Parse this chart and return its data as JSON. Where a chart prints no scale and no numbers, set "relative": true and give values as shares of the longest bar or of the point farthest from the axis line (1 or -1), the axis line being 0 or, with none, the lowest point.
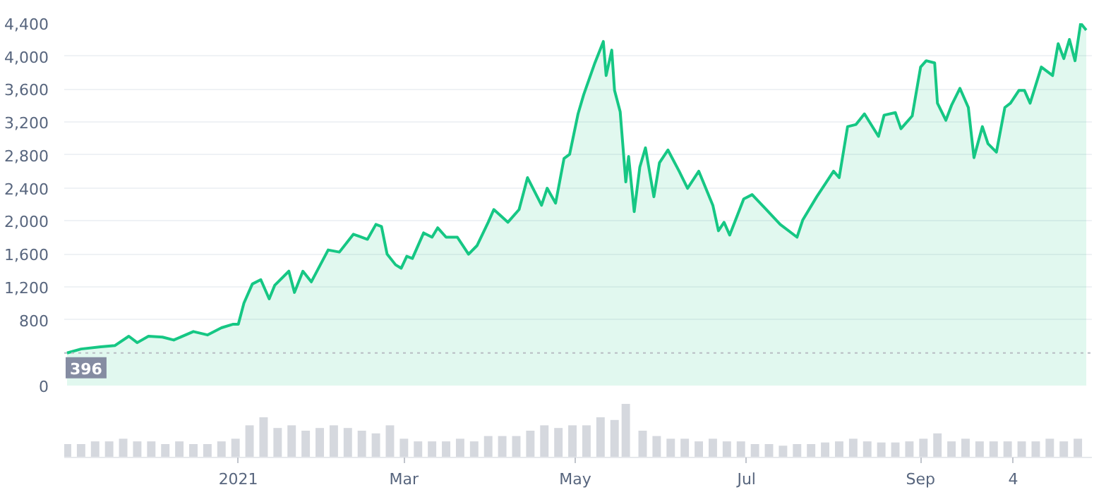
{
  "chart_data": [
    {
      "type": "area",
      "tick_labels": "y",
      "xlim": [
        "2020-10-31",
        "2021-11-01"
      ],
      "ylim": [
        0,
        4400
      ],
      "yticks": [
        0,
        800,
        {
          "value": 1200,
          "label": "1,200"
        },
        {
          "value": 1600,
          "label": "1,600"
        },
        {
          "value": 2000,
          "label": "2,000"
        },
        {
          "value": 2400,
          "label": "2,400"
        },
        {
          "value": 2800,
          "label": "2,800"
        },
        {
          "value": 3200,
          "label": "3,200"
        },
        {
          "value": 3600,
          "label": "3,600"
        },
        {
          "value": 4000,
          "label": "4,000"
        },
        {
          "value": 4400,
          "label": "4,400"
        }
      ],
      "grid": "y",
      "ref_lines": [
        {
          "axis": "y",
          "value": 396,
          "label": "396",
          "color": "#b8bcc4",
          "line_style": "dotted"
        }
      ],
      "series": [
        {
          "color": "#16c784",
          "x": [
            "2020-11-01",
            "2020-11-06",
            "2020-11-13",
            "2020-11-18",
            "2020-11-23",
            "2020-11-26",
            "2020-11-30",
            "2020-12-05",
            "2020-12-09",
            "2020-12-16",
            "2020-12-21",
            "2020-12-26",
            "2020-12-30",
            "2021-01-01",
            "2021-01-03",
            "2021-01-06",
            "2021-01-09",
            "2021-01-12",
            "2021-01-14",
            "2021-01-19",
            "2021-01-21",
            "2021-01-24",
            "2021-01-27",
            "2021-02-02",
            "2021-02-06",
            "2021-02-11",
            "2021-02-16",
            "2021-02-19",
            "2021-02-21",
            "2021-02-23",
            "2021-02-26",
            "2021-02-28",
            "2021-03-02",
            "2021-03-04",
            "2021-03-08",
            "2021-03-11",
            "2021-03-13",
            "2021-03-16",
            "2021-03-20",
            "2021-03-24",
            "2021-03-27",
            "2021-03-31",
            "2021-04-02",
            "2021-04-07",
            "2021-04-11",
            "2021-04-14",
            "2021-04-19",
            "2021-04-21",
            "2021-04-24",
            "2021-04-27",
            "2021-04-29",
            "2021-05-02",
            "2021-05-04",
            "2021-05-08",
            "2021-05-11",
            "2021-05-12",
            "2021-05-14",
            "2021-05-15",
            "2021-05-17",
            "2021-05-19",
            "2021-05-20",
            "2021-05-22",
            "2021-05-24",
            "2021-05-26",
            "2021-05-29",
            "2021-05-31",
            "2021-06-03",
            "2021-06-07",
            "2021-06-10",
            "2021-06-14",
            "2021-06-19",
            "2021-06-21",
            "2021-06-23",
            "2021-06-25",
            "2021-06-30",
            "2021-07-03",
            "2021-07-08",
            "2021-07-13",
            "2021-07-19",
            "2021-07-21",
            "2021-07-26",
            "2021-08-01",
            "2021-08-03",
            "2021-08-06",
            "2021-08-09",
            "2021-08-12",
            "2021-08-17",
            "2021-08-19",
            "2021-08-23",
            "2021-08-25",
            "2021-08-29",
            "2021-09-01",
            "2021-09-03",
            "2021-09-06",
            "2021-09-07",
            "2021-09-10",
            "2021-09-12",
            "2021-09-15",
            "2021-09-18",
            "2021-09-20",
            "2021-09-23",
            "2021-09-25",
            "2021-09-28",
            "2021-10-01",
            "2021-10-03",
            "2021-10-06",
            "2021-10-08",
            "2021-10-10",
            "2021-10-14",
            "2021-10-18",
            "2021-10-20",
            "2021-10-22",
            "2021-10-24",
            "2021-10-26",
            "2021-10-28",
            "2021-10-30"
          ],
          "values": [
            396,
            444,
            470,
            485,
            599,
            521,
            599,
            589,
            553,
            656,
            615,
            702,
            744,
            744,
            1002,
            1234,
            1286,
            1053,
            1219,
            1389,
            1131,
            1389,
            1260,
            1647,
            1621,
            1838,
            1776,
            1957,
            1931,
            1596,
            1467,
            1425,
            1570,
            1544,
            1854,
            1802,
            1916,
            1802,
            1802,
            1596,
            1699,
            1983,
            2138,
            1983,
            2138,
            2525,
            2190,
            2396,
            2215,
            2757,
            2809,
            3300,
            3532,
            3919,
            4178,
            3765,
            4074,
            3584,
            3326,
            2474,
            2783,
            2112,
            2654,
            2887,
            2293,
            2706,
            2861,
            2603,
            2396,
            2603,
            2190,
            1880,
            1983,
            1828,
            2267,
            2319,
            2138,
            1957,
            1802,
            2009,
            2293,
            2603,
            2525,
            3145,
            3171,
            3300,
            3026,
            3284,
            3315,
            3119,
            3274,
            3868,
            3945,
            3919,
            3429,
            3222,
            3403,
            3610,
            3377,
            2768,
            3145,
            2938,
            2835,
            3377,
            3429,
            3584,
            3584,
            3429,
            3868,
            3765,
            4152,
            3971,
            4203,
            3945,
            4400,
            4317
          ]
        }
      ]
    },
    {
      "type": "bar",
      "relative": true,
      "xlim": [
        "2020-10-31",
        "2021-11-01"
      ],
      "xticks": [
        {
          "value": "2021-01-01",
          "label": "2021"
        },
        {
          "value": "2021-03-01",
          "label": "Mar"
        },
        {
          "value": "2021-05-01",
          "label": "May"
        },
        {
          "value": "2021-07-01",
          "label": "Jul"
        },
        {
          "value": "2021-09-01",
          "label": "Sep"
        },
        {
          "value": "2021-10-04",
          "label": "4"
        }
      ],
      "series": [
        {
          "color": "#d5d8de",
          "x": [
            "2020-11-01",
            "2020-11-06",
            "2020-11-11",
            "2020-11-16",
            "2020-11-21",
            "2020-11-26",
            "2020-12-01",
            "2020-12-06",
            "2020-12-11",
            "2020-12-16",
            "2020-12-21",
            "2020-12-26",
            "2020-12-31",
            "2021-01-05",
            "2021-01-10",
            "2021-01-15",
            "2021-01-20",
            "2021-01-25",
            "2021-01-30",
            "2021-02-04",
            "2021-02-09",
            "2021-02-14",
            "2021-02-19",
            "2021-02-24",
            "2021-03-01",
            "2021-03-06",
            "2021-03-11",
            "2021-03-16",
            "2021-03-21",
            "2021-03-26",
            "2021-03-31",
            "2021-04-05",
            "2021-04-10",
            "2021-04-15",
            "2021-04-20",
            "2021-04-25",
            "2021-04-30",
            "2021-05-05",
            "2021-05-10",
            "2021-05-15",
            "2021-05-19",
            "2021-05-25",
            "2021-05-30",
            "2021-06-04",
            "2021-06-09",
            "2021-06-14",
            "2021-06-19",
            "2021-06-24",
            "2021-06-29",
            "2021-07-04",
            "2021-07-09",
            "2021-07-14",
            "2021-07-19",
            "2021-07-24",
            "2021-07-29",
            "2021-08-03",
            "2021-08-08",
            "2021-08-13",
            "2021-08-18",
            "2021-08-23",
            "2021-08-28",
            "2021-09-02",
            "2021-09-07",
            "2021-09-12",
            "2021-09-17",
            "2021-09-22",
            "2021-09-27",
            "2021-10-02",
            "2021-10-07",
            "2021-10-12",
            "2021-10-17",
            "2021-10-22",
            "2021-10-27"
          ],
          "values": [
            0.25,
            0.25,
            0.3,
            0.3,
            0.35,
            0.3,
            0.3,
            0.25,
            0.3,
            0.25,
            0.25,
            0.3,
            0.35,
            0.6,
            0.75,
            0.55,
            0.6,
            0.5,
            0.55,
            0.6,
            0.55,
            0.5,
            0.45,
            0.6,
            0.35,
            0.3,
            0.3,
            0.3,
            0.35,
            0.3,
            0.4,
            0.4,
            0.4,
            0.5,
            0.6,
            0.55,
            0.6,
            0.6,
            0.75,
            0.7,
            1.0,
            0.5,
            0.4,
            0.35,
            0.35,
            0.3,
            0.35,
            0.3,
            0.3,
            0.25,
            0.25,
            0.22,
            0.25,
            0.25,
            0.28,
            0.3,
            0.35,
            0.3,
            0.28,
            0.28,
            0.3,
            0.35,
            0.45,
            0.3,
            0.35,
            0.3,
            0.3,
            0.3,
            0.3,
            0.3,
            0.35,
            0.3,
            0.35
          ]
        }
      ]
    }
  ]
}
